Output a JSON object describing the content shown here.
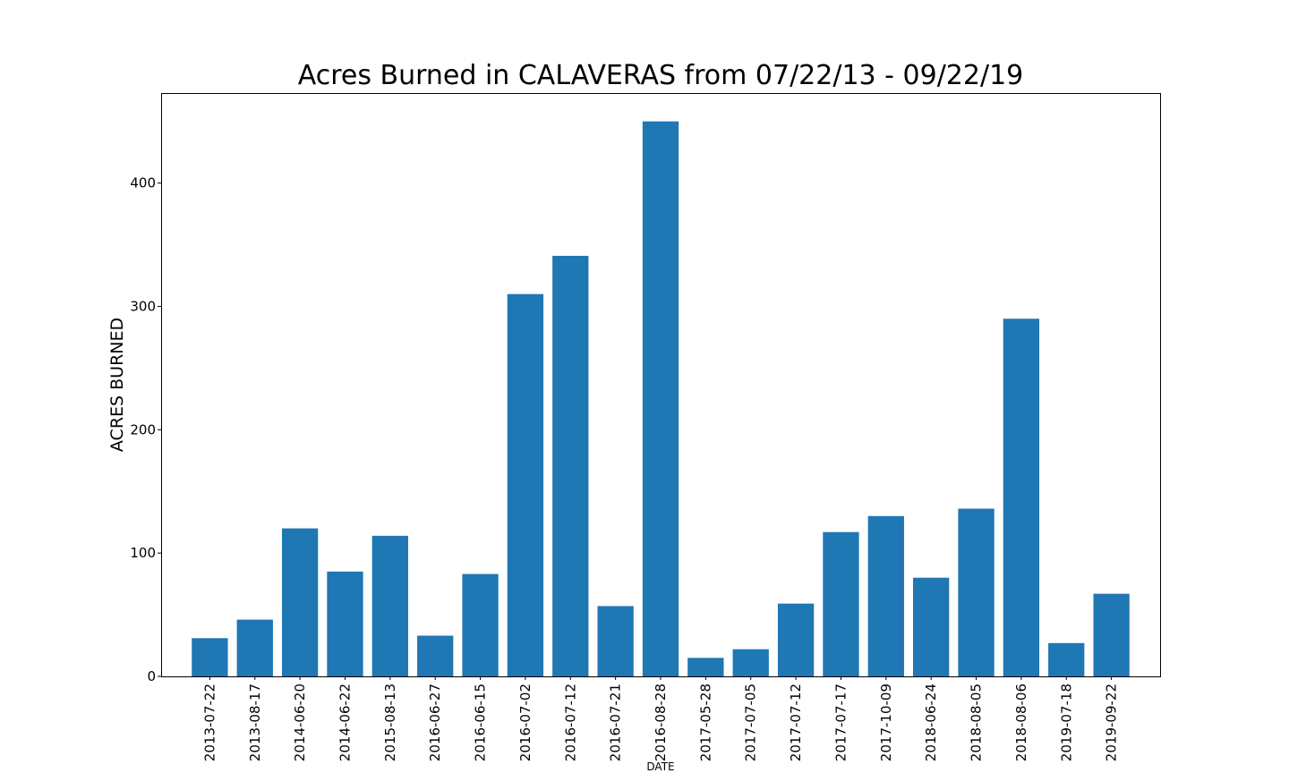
{
  "chart_data": {
    "type": "bar",
    "title": "Acres Burned in CALAVERAS from 07/22/13 - 09/22/19",
    "xlabel": "DATE",
    "ylabel": "ACRES BURNED",
    "categories": [
      "2013-07-22",
      "2013-08-17",
      "2014-06-20",
      "2014-06-22",
      "2015-08-13",
      "2016-06-27",
      "2016-06-15",
      "2016-07-02",
      "2016-07-12",
      "2016-07-21",
      "2016-08-28",
      "2017-05-28",
      "2017-07-05",
      "2017-07-12",
      "2017-07-17",
      "2017-10-09",
      "2018-06-24",
      "2018-08-05",
      "2018-08-06",
      "2019-07-18",
      "2019-09-22"
    ],
    "values": [
      31,
      46,
      120,
      85,
      114,
      33,
      83,
      310,
      341,
      57,
      450,
      15,
      22,
      59,
      117,
      130,
      80,
      136,
      290,
      27,
      67
    ],
    "ylim": [
      0,
      473
    ],
    "yticks": [
      0,
      100,
      200,
      300,
      400
    ],
    "bar_color": "#1f77b4",
    "grid": false,
    "legend": "none"
  }
}
